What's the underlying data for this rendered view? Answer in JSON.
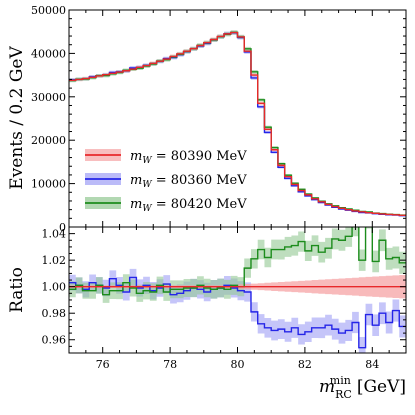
{
  "chart_data": [
    {
      "type": "line",
      "drawstyle": "steps",
      "panel": "top",
      "ylabel": "Events / 0.2 GeV",
      "xlim": [
        75,
        85
      ],
      "ylim": [
        0,
        50000
      ],
      "yticks": [
        0,
        10000,
        20000,
        30000,
        40000,
        50000
      ],
      "bin_edges": [
        75.0,
        75.2,
        75.4,
        75.6,
        75.8,
        76.0,
        76.2,
        76.4,
        76.6,
        76.8,
        77.0,
        77.2,
        77.4,
        77.6,
        77.8,
        78.0,
        78.2,
        78.4,
        78.6,
        78.8,
        79.0,
        79.2,
        79.4,
        79.6,
        79.8,
        80.0,
        80.2,
        80.4,
        80.6,
        80.8,
        81.0,
        81.2,
        81.4,
        81.6,
        81.8,
        82.0,
        82.2,
        82.4,
        82.6,
        82.8,
        83.0,
        83.2,
        83.4,
        83.6,
        83.8,
        84.0,
        84.2,
        84.4,
        84.6,
        84.8,
        85.0
      ],
      "legend_position": "center-left",
      "series": [
        {
          "label_math": "m",
          "label_sub": "W",
          "label_value": " = 80390 MeV",
          "color": "#e8282b",
          "band_color": "#f5a3a4",
          "values": [
            33800,
            34000,
            34200,
            34500,
            34800,
            35100,
            35400,
            35700,
            36000,
            36400,
            36800,
            37200,
            37700,
            38200,
            38700,
            39300,
            39900,
            40500,
            41100,
            41800,
            42500,
            43200,
            43900,
            44500,
            44800,
            43800,
            40500,
            35000,
            28500,
            22500,
            17800,
            14200,
            11600,
            9800,
            8400,
            7400,
            6500,
            5800,
            5200,
            4700,
            4300,
            4000,
            3700,
            3500,
            3300,
            3150,
            3000,
            2900,
            2800,
            2700
          ]
        },
        {
          "label_math": "m",
          "label_sub": "W",
          "label_value": " = 80360 MeV",
          "color": "#2525e8",
          "band_color": "#9e9ef5",
          "values": [
            33900,
            34050,
            34150,
            34600,
            34850,
            35050,
            35600,
            35750,
            35950,
            36650,
            36750,
            37250,
            37600,
            38150,
            38800,
            39050,
            39700,
            40400,
            41050,
            41700,
            42300,
            43100,
            43850,
            44550,
            44750,
            43650,
            40350,
            34350,
            27700,
            21800,
            17200,
            13750,
            11200,
            9500,
            8100,
            7150,
            6300,
            5620,
            5050,
            4550,
            4150,
            3870,
            3600,
            3340,
            3230,
            3060,
            2940,
            2820,
            2750,
            2620
          ]
        },
        {
          "label_math": "m",
          "label_sub": "W",
          "label_value": " = 80420 MeV",
          "color": "#1c8c1c",
          "band_color": "#92c892",
          "values": [
            33750,
            34050,
            34100,
            34400,
            34850,
            34900,
            35300,
            35600,
            36100,
            36350,
            36600,
            37100,
            37550,
            38250,
            38550,
            39200,
            39800,
            40450,
            41050,
            41850,
            42450,
            43100,
            43850,
            44400,
            44850,
            43800,
            41050,
            35750,
            29300,
            23000,
            18300,
            14600,
            11950,
            10100,
            8690,
            7600,
            6700,
            5950,
            5350,
            4870,
            4450,
            4150,
            3870,
            3570,
            3470,
            3210,
            3100,
            2960,
            2860,
            2750
          ]
        }
      ]
    },
    {
      "type": "line",
      "drawstyle": "steps",
      "panel": "bottom",
      "ylabel": "Ratio",
      "xlim": [
        75,
        85
      ],
      "ylim": [
        0.95,
        1.045
      ],
      "yticks": [
        0.96,
        0.98,
        1.0,
        1.02,
        1.04
      ],
      "yticklabels": [
        "0.96",
        "0.98",
        "1.00",
        "1.02",
        "1.04"
      ],
      "xticks": [
        76,
        78,
        80,
        82,
        84
      ],
      "xticklabels": [
        "76",
        "78",
        "80",
        "82",
        "84"
      ],
      "xlabel_main": "m",
      "xlabel_sup": "min",
      "xlabel_sub": "RC",
      "xlabel_unit": "[GeV]",
      "reference": {
        "color": "#e8282b",
        "value": 1.0,
        "band_halfwidth_start": 0.001,
        "band_halfwidth_end": 0.009,
        "band_start_x": 79.6
      },
      "series": [
        {
          "color": "#2525e8",
          "band_color": "#9e9ef5",
          "band_halfwidth": 0.006,
          "values": [
            1.003,
            1.001,
            0.998,
            1.003,
            1.001,
            0.999,
            1.006,
            1.001,
            0.996,
            1.007,
            0.999,
            1.001,
            0.997,
            0.999,
            1.002,
            0.994,
            0.995,
            0.997,
            0.999,
            0.998,
            0.996,
            0.998,
            0.999,
            1.001,
            0.999,
            0.997,
            0.996,
            0.981,
            0.972,
            0.969,
            0.967,
            0.968,
            0.966,
            0.969,
            0.964,
            0.966,
            0.969,
            0.969,
            0.971,
            0.968,
            0.965,
            0.967,
            0.973,
            0.954,
            0.979,
            0.971,
            0.98,
            0.973,
            0.982,
            0.97
          ]
        },
        {
          "color": "#1c8c1c",
          "band_color": "#92c892",
          "band_halfwidth": 0.006,
          "values": [
            0.998,
            1.001,
            0.997,
            0.997,
            1.001,
            0.994,
            0.997,
            0.997,
            1.003,
            0.999,
            0.995,
            0.997,
            0.996,
            1.001,
            0.996,
            0.998,
            0.998,
            0.999,
            0.999,
            1.001,
            0.999,
            0.998,
            0.999,
            0.998,
            1.001,
            1.0,
            1.014,
            1.021,
            1.028,
            1.022,
            1.028,
            1.028,
            1.03,
            1.031,
            1.034,
            1.027,
            1.031,
            1.026,
            1.029,
            1.036,
            1.035,
            1.038,
            1.046,
            1.02,
            1.052,
            1.019,
            1.035,
            1.021,
            1.022,
            1.018
          ]
        }
      ]
    }
  ]
}
